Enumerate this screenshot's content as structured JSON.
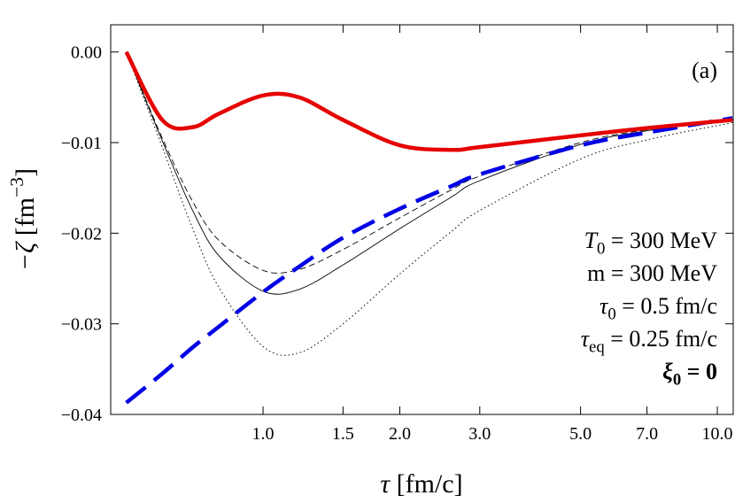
{
  "chart_data": {
    "type": "line",
    "xlabel": {
      "main": "τ",
      "rest": " [fm/c]"
    },
    "ylabel": {
      "main": "−ζ",
      "rest": "  [fm",
      "sup": "−3",
      "end": "]"
    },
    "xscale": "log",
    "xlim": [
      0.462,
      10.84
    ],
    "ylim": [
      -0.04,
      0.003
    ],
    "xticks": [
      {
        "value": 1.0,
        "label": "1.0"
      },
      {
        "value": 1.5,
        "label": "1.5"
      },
      {
        "value": 2.0,
        "label": "2.0"
      },
      {
        "value": 3.0,
        "label": "3.0"
      },
      {
        "value": 5.0,
        "label": "5.0"
      },
      {
        "value": 7.0,
        "label": "7.0"
      },
      {
        "value": 10.0,
        "label": "10.0"
      }
    ],
    "yticks": [
      {
        "value": 0,
        "label": "0.00"
      },
      {
        "value": -0.01,
        "label": "−0.01"
      },
      {
        "value": -0.02,
        "label": "−0.02"
      },
      {
        "value": -0.03,
        "label": "−0.03"
      },
      {
        "value": -0.04,
        "label": "−0.04"
      }
    ],
    "grid": false,
    "x": [
      0.5,
      0.6,
      0.7,
      0.8,
      1.0,
      1.2,
      1.5,
      2.0,
      2.6,
      3.0,
      5.0,
      7.0,
      10.8
    ],
    "series": [
      {
        "color": "#000000",
        "style": "thin-dotted",
        "values": [
          0,
          -0.0105,
          -0.0195,
          -0.026,
          -0.0325,
          -0.0332,
          -0.03,
          -0.0245,
          -0.0198,
          -0.0175,
          -0.0118,
          -0.0097,
          -0.0078
        ]
      },
      {
        "color": "#000000",
        "style": "thin-dashed",
        "values": [
          0,
          -0.0095,
          -0.0165,
          -0.0208,
          -0.0241,
          -0.024,
          -0.0218,
          -0.0183,
          -0.0152,
          -0.0137,
          -0.01,
          -0.0086,
          -0.0075
        ]
      },
      {
        "color": "#000000",
        "style": "thin",
        "values": [
          0,
          -0.0098,
          -0.0175,
          -0.0225,
          -0.0264,
          -0.0262,
          -0.0235,
          -0.0195,
          -0.016,
          -0.0142,
          -0.0102,
          -0.0087,
          -0.0075
        ]
      },
      {
        "color": "#0000e6",
        "style": "thick-dashed",
        "values": [
          -0.0387,
          -0.0355,
          -0.0326,
          -0.0303,
          -0.0265,
          -0.0237,
          -0.0205,
          -0.0173,
          -0.0148,
          -0.0135,
          -0.0103,
          -0.0089,
          -0.0073
        ]
      },
      {
        "color": "#e60000",
        "style": "thick",
        "values": [
          0,
          -0.0075,
          -0.0083,
          -0.0068,
          -0.0048,
          -0.005,
          -0.0075,
          -0.0103,
          -0.0108,
          -0.0105,
          -0.0092,
          -0.0084,
          -0.0075
        ]
      }
    ],
    "annotations": [
      {
        "main": "(a)"
      },
      {
        "main": "T",
        "sub": "0",
        "rest": " = 300 MeV"
      },
      {
        "main": "m = 300 MeV"
      },
      {
        "main": "τ",
        "sub": "0",
        "rest": " = 0.5 fm/c"
      },
      {
        "main": "τ",
        "sub": "eq",
        "rest": " = 0.25 fm/c"
      },
      {
        "main": "ξ",
        "sub": "0",
        "rest": " = 0",
        "bold": true
      }
    ]
  }
}
